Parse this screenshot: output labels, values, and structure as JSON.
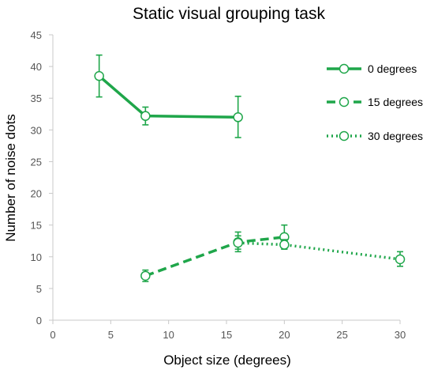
{
  "chart_data": {
    "type": "line",
    "title": "Static visual grouping task",
    "xlabel": "Object size (degrees)",
    "ylabel": "Number of noise dots",
    "xlim": [
      0,
      30
    ],
    "ylim": [
      0,
      45
    ],
    "xticks": [
      0,
      5,
      10,
      15,
      20,
      25,
      30
    ],
    "yticks": [
      0,
      5,
      10,
      15,
      20,
      25,
      30,
      35,
      40,
      45
    ],
    "grid": false,
    "legend_position": "top-right",
    "color": "#1fa64a",
    "series": [
      {
        "name": "0 degrees",
        "line_style": "solid",
        "points": [
          {
            "x": 4,
            "y": 38.5,
            "err_low": 35.2,
            "err_high": 41.8
          },
          {
            "x": 8,
            "y": 32.2,
            "err_low": 30.8,
            "err_high": 33.6
          },
          {
            "x": 16,
            "y": 32.0,
            "err_low": 28.8,
            "err_high": 35.3
          }
        ]
      },
      {
        "name": "15 degrees",
        "line_style": "dashed",
        "points": [
          {
            "x": 8,
            "y": 7.0,
            "err_low": 6.1,
            "err_high": 7.9
          },
          {
            "x": 16,
            "y": 12.3,
            "err_low": 10.8,
            "err_high": 13.9
          },
          {
            "x": 20,
            "y": 13.1,
            "err_low": 11.2,
            "err_high": 15.0
          }
        ]
      },
      {
        "name": "30 degrees",
        "line_style": "dotted",
        "points": [
          {
            "x": 16,
            "y": 12.2,
            "err_low": 11.2,
            "err_high": 13.3
          },
          {
            "x": 20,
            "y": 11.9,
            "err_low": 11.2,
            "err_high": 12.7
          },
          {
            "x": 30,
            "y": 9.6,
            "err_low": 8.5,
            "err_high": 10.8
          }
        ]
      }
    ]
  }
}
